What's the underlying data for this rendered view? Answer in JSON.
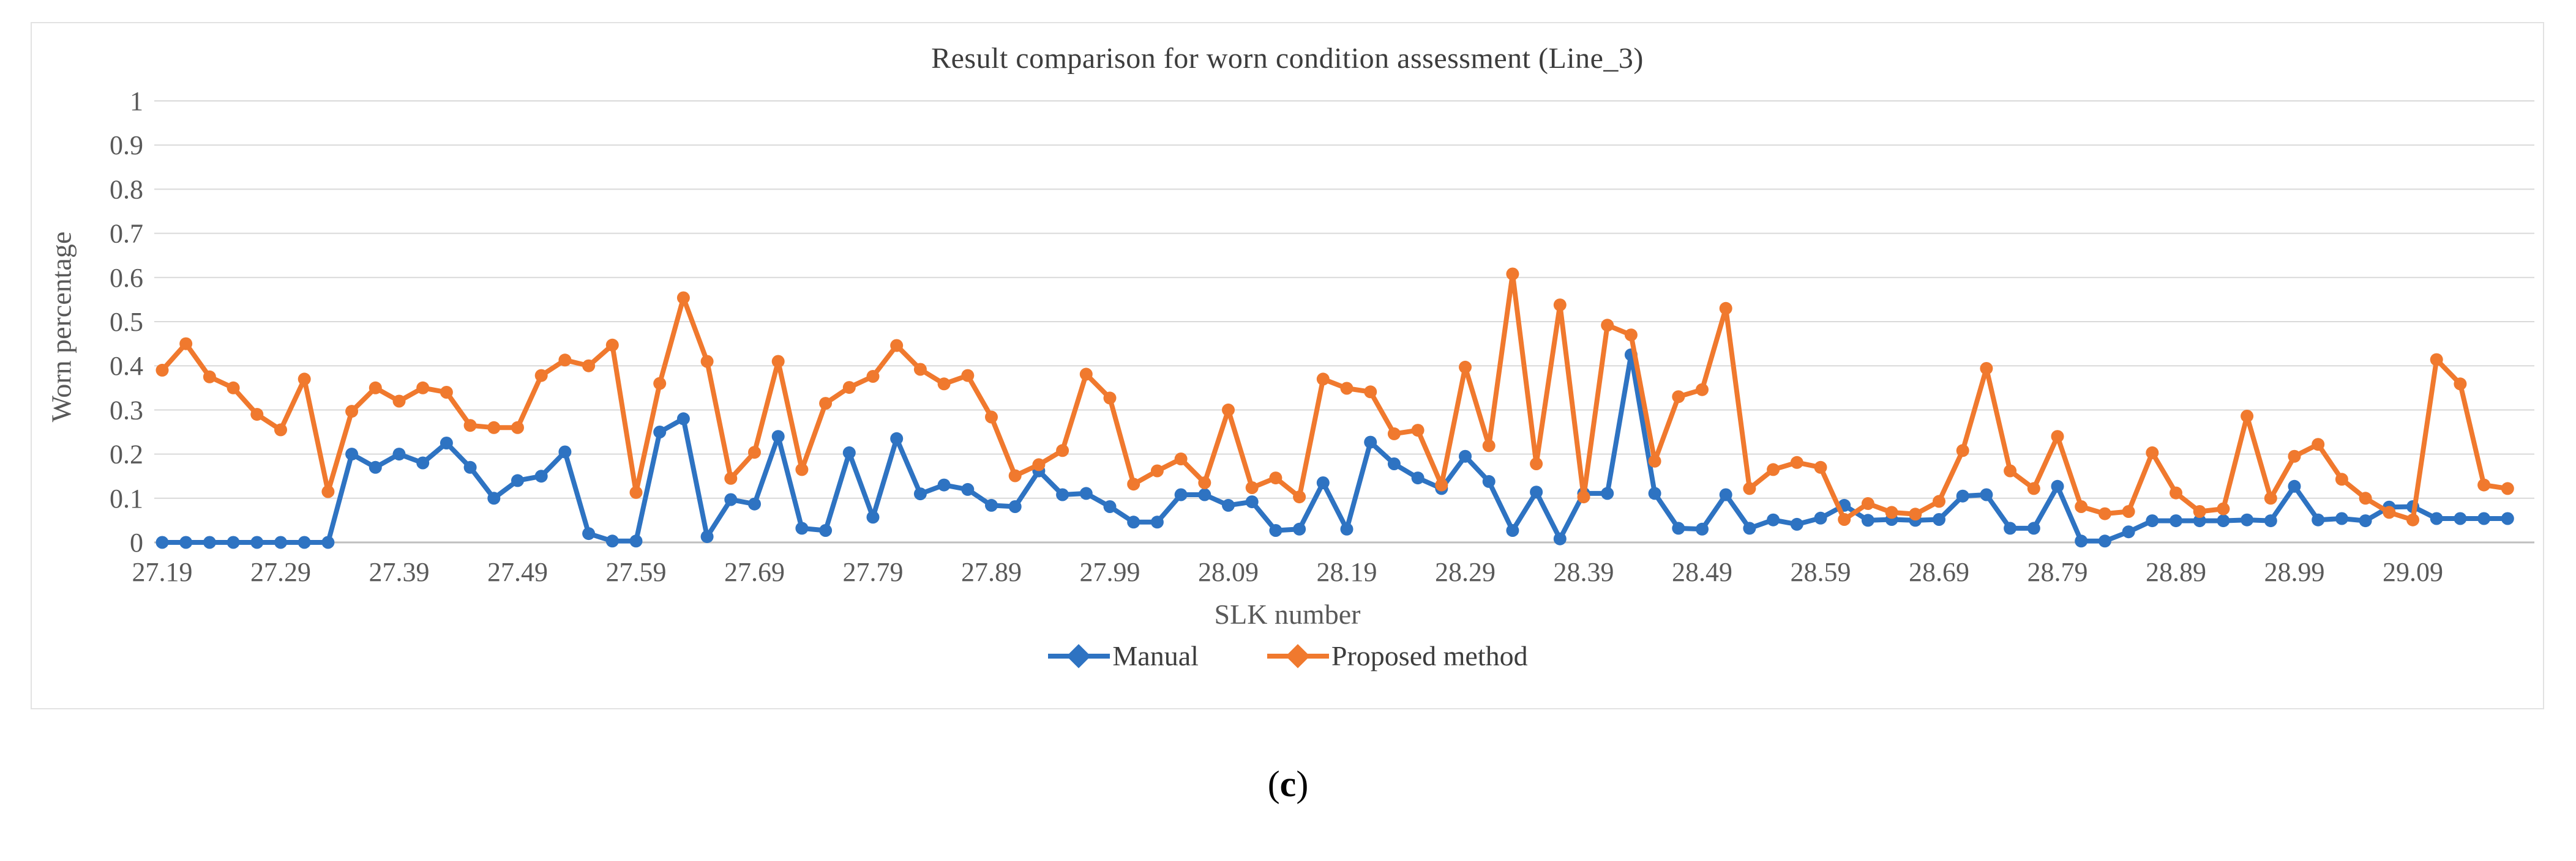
{
  "figure": {
    "title": "Result comparison for worn condition assessment (Line_3)",
    "y_axis_title": "Worn percentage",
    "x_axis_title": "SLK number",
    "caption_open": "(",
    "caption_letter": "c",
    "caption_close": ")",
    "legend": [
      {
        "label": "Manual",
        "color": "#2e73c2"
      },
      {
        "label": "Proposed method",
        "color": "#f0792e"
      }
    ],
    "colors": {
      "manual_blue": "#2e73c2",
      "proposed_orange": "#f0792e",
      "gridline": "#d9d9d9",
      "axis_line": "#bfbfbf",
      "axis_text": "#595959",
      "title_text": "#3d3d3d",
      "card_border": "#e2e2e2"
    }
  },
  "chart_data": {
    "type": "line",
    "title": "Result comparison for worn condition assessment (Line_3)",
    "xlabel": "SLK number",
    "ylabel": "Worn percentage",
    "ylim": [
      0,
      1
    ],
    "y_ticks": [
      0,
      0.1,
      0.2,
      0.3,
      0.4,
      0.5,
      0.6,
      0.7,
      0.8,
      0.9,
      1
    ],
    "y_tick_labels": [
      "0",
      "0.1",
      "0.2",
      "0.3",
      "0.4",
      "0.5",
      "0.6",
      "0.7",
      "0.8",
      "0.9",
      "1"
    ],
    "grid": true,
    "legend_position": "bottom",
    "marker": "circle",
    "x_start": 27.19,
    "x_step": 0.02,
    "x_count": 100,
    "x_tick_labels": [
      "27.19",
      "27.29",
      "27.39",
      "27.49",
      "27.59",
      "27.69",
      "27.79",
      "27.89",
      "27.99",
      "28.09",
      "28.19",
      "28.29",
      "28.39",
      "28.49",
      "28.59",
      "28.69",
      "28.79",
      "28.89",
      "28.99",
      "29.09"
    ],
    "series": [
      {
        "name": "Manual",
        "color": "#2e73c2",
        "values": [
          0,
          0,
          0,
          0,
          0,
          0,
          0,
          0,
          0.2,
          0.17,
          0.2,
          0.18,
          0.225,
          0.17,
          0.1,
          0.14,
          0.15,
          0.205,
          0.02,
          0.003,
          0.003,
          0.25,
          0.28,
          0.013,
          0.097,
          0.087,
          0.24,
          0.032,
          0.027,
          0.203,
          0.057,
          0.235,
          0.11,
          0.13,
          0.12,
          0.084,
          0.081,
          0.162,
          0.108,
          0.111,
          0.081,
          0.046,
          0.046,
          0.108,
          0.108,
          0.084,
          0.092,
          0.027,
          0.03,
          0.135,
          0.03,
          0.227,
          0.178,
          0.146,
          0.122,
          0.195,
          0.138,
          0.027,
          0.114,
          0.008,
          0.111,
          0.111,
          0.425,
          0.111,
          0.032,
          0.03,
          0.108,
          0.032,
          0.051,
          0.041,
          0.055,
          0.084,
          0.05,
          0.052,
          0.05,
          0.052,
          0.105,
          0.108,
          0.032,
          0.032,
          0.127,
          0.003,
          0.003,
          0.024,
          0.049,
          0.049,
          0.049,
          0.049,
          0.051,
          0.049,
          0.127,
          0.051,
          0.054,
          0.049,
          0.08,
          0.081,
          0.054,
          0.054,
          0.054,
          0.054
        ]
      },
      {
        "name": "Proposed method",
        "color": "#f0792e",
        "values": [
          0.39,
          0.45,
          0.375,
          0.35,
          0.29,
          0.255,
          0.37,
          0.115,
          0.297,
          0.35,
          0.32,
          0.35,
          0.34,
          0.265,
          0.26,
          0.26,
          0.378,
          0.413,
          0.4,
          0.447,
          0.113,
          0.36,
          0.554,
          0.41,
          0.145,
          0.204,
          0.41,
          0.165,
          0.315,
          0.351,
          0.376,
          0.446,
          0.392,
          0.359,
          0.378,
          0.284,
          0.151,
          0.176,
          0.208,
          0.381,
          0.327,
          0.132,
          0.162,
          0.189,
          0.135,
          0.3,
          0.124,
          0.146,
          0.103,
          0.37,
          0.349,
          0.341,
          0.246,
          0.254,
          0.13,
          0.397,
          0.219,
          0.608,
          0.178,
          0.538,
          0.103,
          0.492,
          0.47,
          0.184,
          0.33,
          0.346,
          0.53,
          0.122,
          0.165,
          0.181,
          0.17,
          0.052,
          0.088,
          0.068,
          0.064,
          0.093,
          0.208,
          0.394,
          0.162,
          0.122,
          0.24,
          0.081,
          0.065,
          0.07,
          0.203,
          0.112,
          0.07,
          0.076,
          0.286,
          0.1,
          0.195,
          0.222,
          0.143,
          0.1,
          0.068,
          0.051,
          0.414,
          0.359,
          0.13,
          0.122
        ]
      }
    ]
  }
}
